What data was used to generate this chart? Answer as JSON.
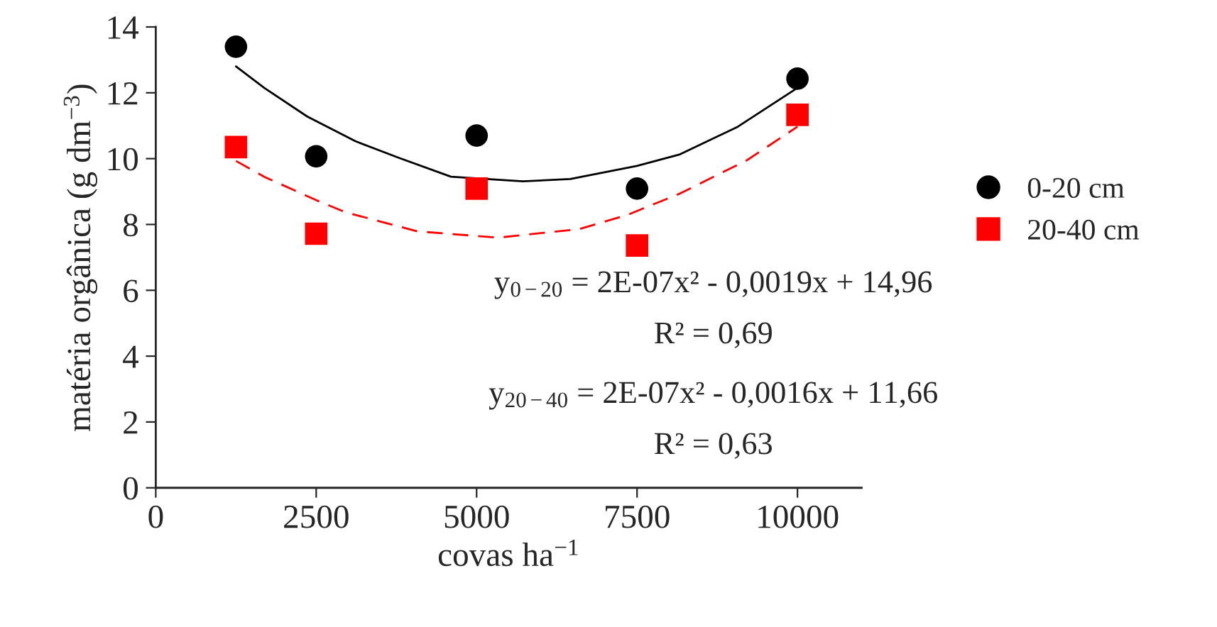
{
  "chart_data": {
    "type": "scatter",
    "xlabel": "covas ha$^{−1}$",
    "ylabel": "matéria orgânica (g dm$^{−3}$)",
    "x": [
      1250,
      2500,
      5000,
      7500,
      10000
    ],
    "series": [
      {
        "name": "0-20 cm",
        "color": "#000000",
        "marker": "circle",
        "values": [
          13.4,
          10.07,
          10.7,
          9.09,
          12.43
        ]
      },
      {
        "name": "20-40 cm",
        "color": "#ff0000",
        "marker": "square",
        "values": [
          10.35,
          7.72,
          9.09,
          7.36,
          11.33
        ]
      },
      {
        "type": "line",
        "color": "#000000",
        "line_style": "solid",
        "x": [
          1250,
          1690,
          2360,
          3110,
          3780,
          4600,
          5720,
          6460,
          7500,
          8170,
          9070,
          10000
        ],
        "values": [
          12.8,
          12.15,
          11.28,
          10.53,
          10.03,
          9.45,
          9.31,
          9.38,
          9.78,
          10.13,
          10.97,
          12.15
        ]
      },
      {
        "type": "line",
        "color": "#ff0000",
        "line_style": "dashed",
        "x": [
          1250,
          1690,
          2510,
          2960,
          4080,
          5340,
          6600,
          7350,
          8170,
          9220,
          10000
        ],
        "values": [
          9.93,
          9.45,
          8.73,
          8.37,
          7.79,
          7.6,
          7.86,
          8.29,
          8.94,
          9.96,
          10.97
        ]
      }
    ],
    "xlim": [
      0,
      11000
    ],
    "xticks": [
      0,
      2500,
      5000,
      7500,
      10000
    ],
    "ylim": [
      0,
      14
    ],
    "yticks": [
      0,
      2,
      4,
      6,
      8,
      10,
      12,
      14
    ],
    "grid": false,
    "legend": "right",
    "annotations": [
      "y$_{0−20}$ = 2E-07x² - 0,0019x + 14,96",
      "R² = 0,69",
      "y$_{20−40}$ = 2E-07x² - 0,0016x + 11,66",
      "R² = 0,63"
    ]
  }
}
